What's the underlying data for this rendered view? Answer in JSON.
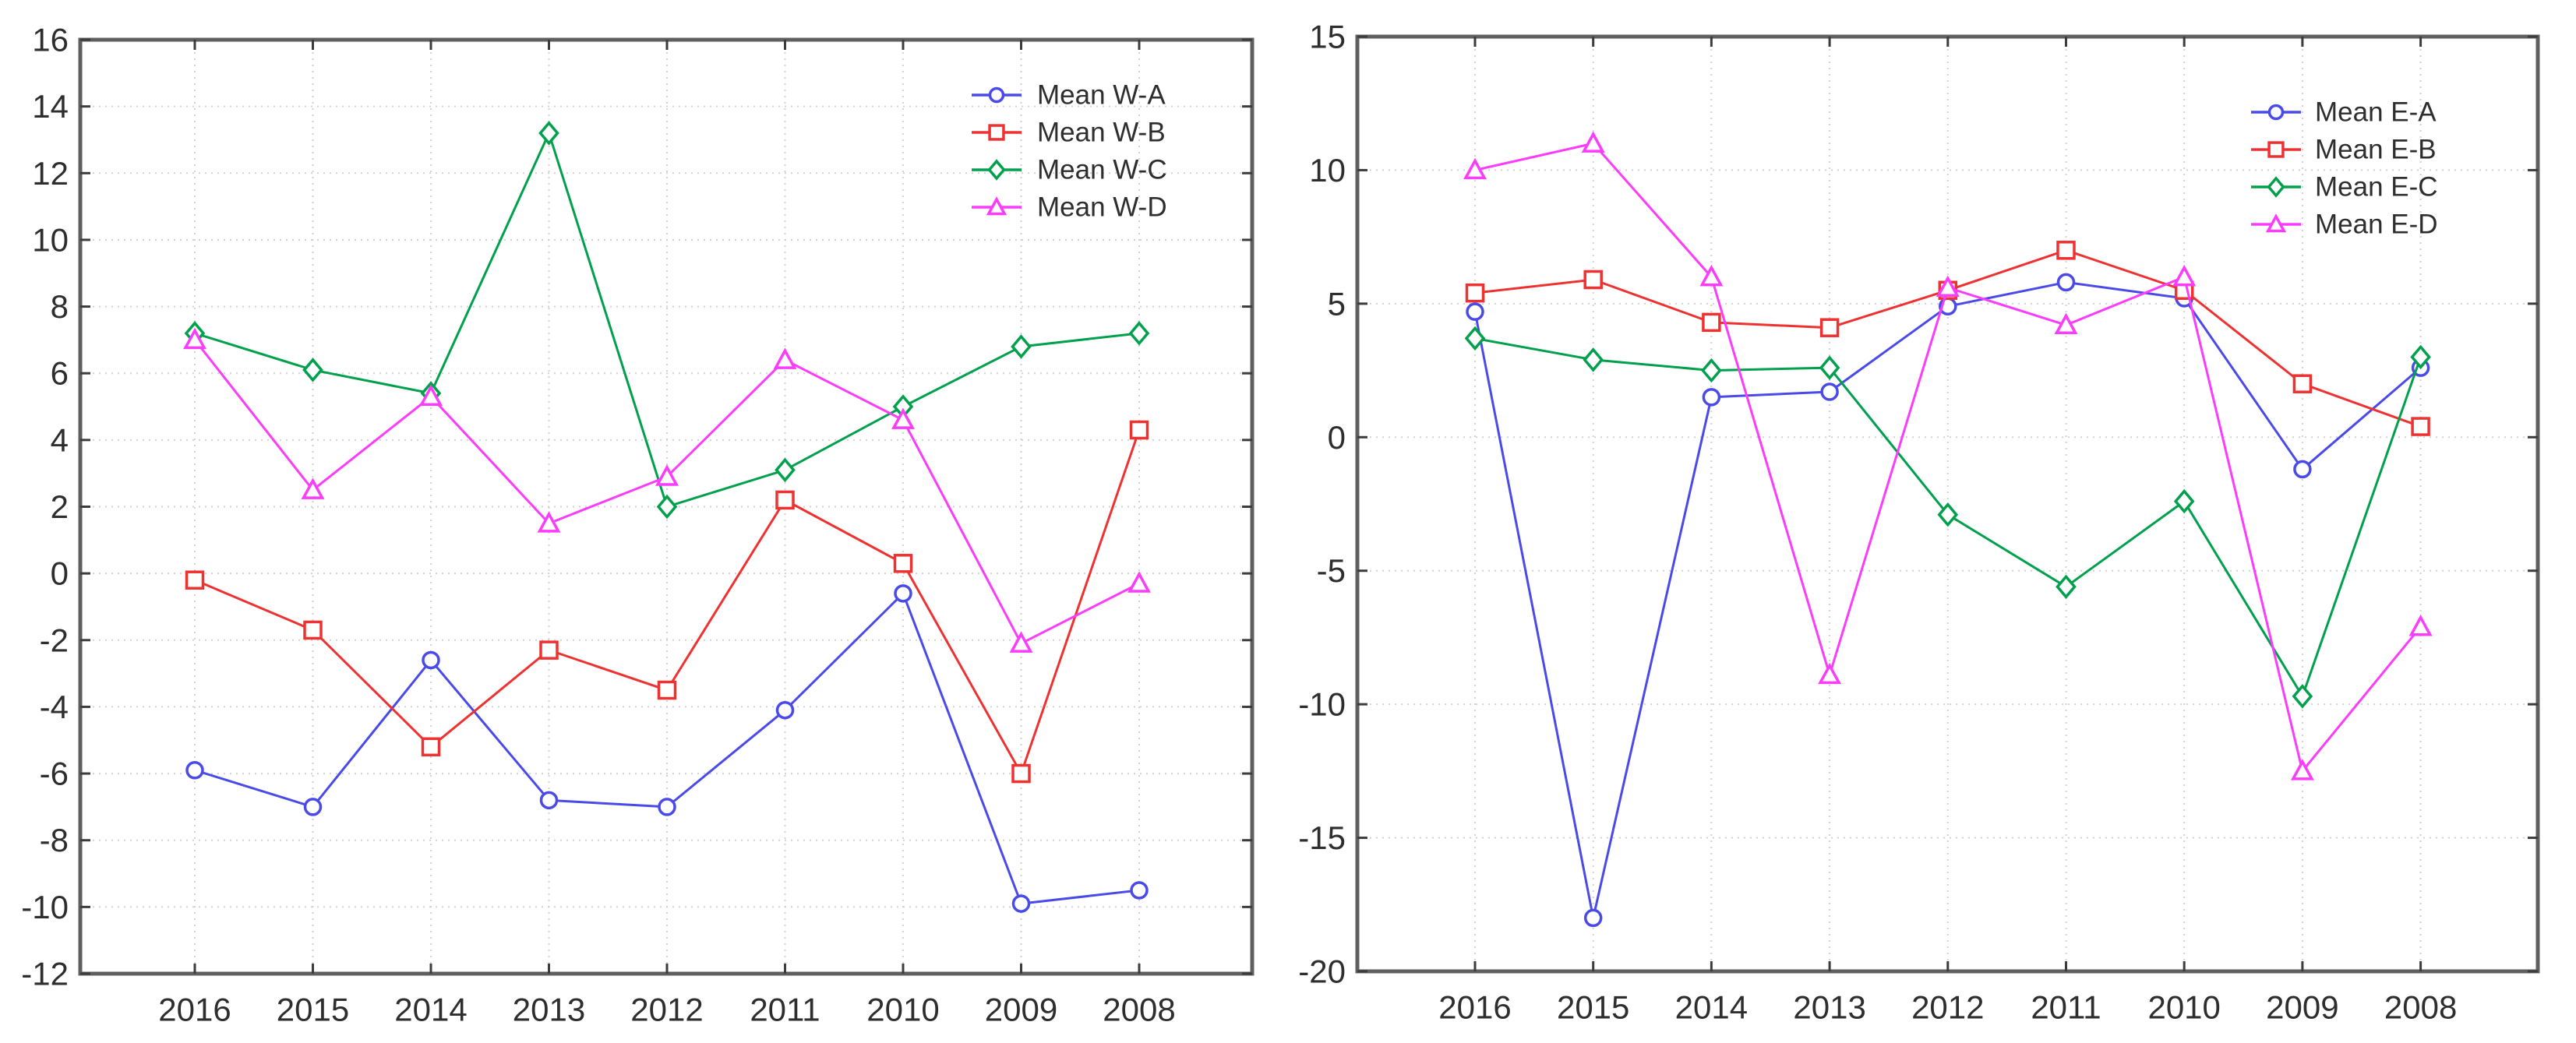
{
  "figure": {
    "background": "#ffffff",
    "text_color": "#2e2e2e",
    "frame_color": "#5f5f5f",
    "grid_color": "#d2d2d2"
  },
  "chart_data": [
    {
      "id": "west",
      "type": "line",
      "title": "",
      "xlabel": "",
      "ylabel": "",
      "categories": [
        "2016",
        "2015",
        "2014",
        "2013",
        "2012",
        "2011",
        "2010",
        "2009",
        "2008"
      ],
      "ylim": [
        -12,
        16
      ],
      "yticks": [
        16,
        14,
        12,
        10,
        8,
        6,
        4,
        2,
        0,
        -2,
        -4,
        -6,
        -8,
        -10,
        -12
      ],
      "grid": "dotted",
      "legend_position": "top-right-inside",
      "series": [
        {
          "name": "Mean W-A",
          "color": "#4a4ae8",
          "marker": "circle",
          "values": [
            -5.9,
            -7.0,
            -2.6,
            -6.8,
            -7.0,
            -4.1,
            -0.6,
            -9.9,
            -9.5
          ]
        },
        {
          "name": "Mean W-B",
          "color": "#ee3232",
          "marker": "square",
          "values": [
            -0.2,
            -1.7,
            -5.2,
            -2.3,
            -3.5,
            2.2,
            0.3,
            -6.0,
            4.3
          ]
        },
        {
          "name": "Mean W-C",
          "color": "#00a04d",
          "marker": "diamond",
          "values": [
            7.2,
            6.1,
            5.4,
            13.2,
            2.0,
            3.1,
            5.0,
            6.8,
            7.2
          ]
        },
        {
          "name": "Mean W-D",
          "color": "#fb3cfb",
          "marker": "triangle",
          "values": [
            7.0,
            2.5,
            5.3,
            1.5,
            2.9,
            6.4,
            4.6,
            -2.1,
            -0.3
          ]
        }
      ]
    },
    {
      "id": "east",
      "type": "line",
      "title": "",
      "xlabel": "",
      "ylabel": "",
      "categories": [
        "2016",
        "2015",
        "2014",
        "2013",
        "2012",
        "2011",
        "2010",
        "2009",
        "2008"
      ],
      "ylim": [
        -20,
        15
      ],
      "yticks": [
        15,
        10,
        5,
        0,
        -5,
        -10,
        -15,
        -20
      ],
      "grid": "dotted",
      "legend_position": "top-right-inside",
      "series": [
        {
          "name": "Mean E-A",
          "color": "#4a4ae8",
          "marker": "circle",
          "values": [
            4.7,
            -18.0,
            1.5,
            1.7,
            4.9,
            5.8,
            5.2,
            -1.2,
            2.6
          ]
        },
        {
          "name": "Mean E-B",
          "color": "#ee3232",
          "marker": "square",
          "values": [
            5.4,
            5.9,
            4.3,
            4.1,
            5.5,
            7.0,
            5.5,
            2.0,
            0.4
          ]
        },
        {
          "name": "Mean E-C",
          "color": "#00a04d",
          "marker": "diamond",
          "values": [
            3.7,
            2.9,
            2.5,
            2.6,
            -2.9,
            -5.6,
            -2.4,
            -9.7,
            3.0
          ]
        },
        {
          "name": "Mean E-D",
          "color": "#fb3cfb",
          "marker": "triangle",
          "values": [
            10.0,
            11.0,
            6.0,
            -8.9,
            5.6,
            4.2,
            6.0,
            -12.5,
            -7.1
          ]
        }
      ]
    }
  ]
}
